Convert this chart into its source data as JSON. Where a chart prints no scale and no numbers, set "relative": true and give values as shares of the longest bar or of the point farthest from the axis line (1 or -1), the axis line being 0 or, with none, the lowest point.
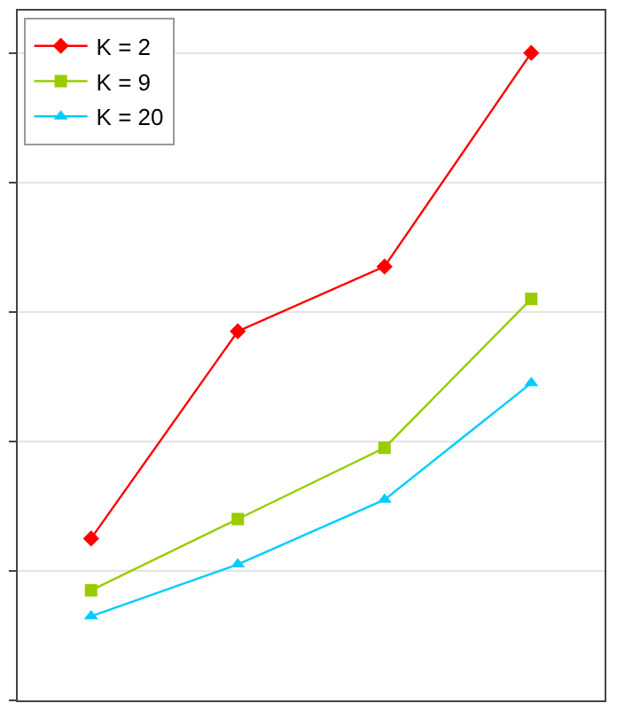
{
  "chart_data": {
    "type": "line",
    "relative": true,
    "categories": [
      null,
      null,
      null,
      null
    ],
    "series": [
      {
        "name": "K = 2",
        "color": "#ff0000",
        "marker": "diamond",
        "values": [
          0.25,
          0.57,
          0.67,
          1
        ]
      },
      {
        "name": "K = 9",
        "color": "#99cc00",
        "marker": "square",
        "values": [
          0.17,
          0.28,
          0.39,
          0.62
        ]
      },
      {
        "name": "K = 20",
        "color": "#00ccff",
        "marker": "triangle",
        "values": [
          0.13,
          0.21,
          0.31,
          0.49
        ]
      }
    ],
    "grid": "y",
    "legend": "top left"
  }
}
